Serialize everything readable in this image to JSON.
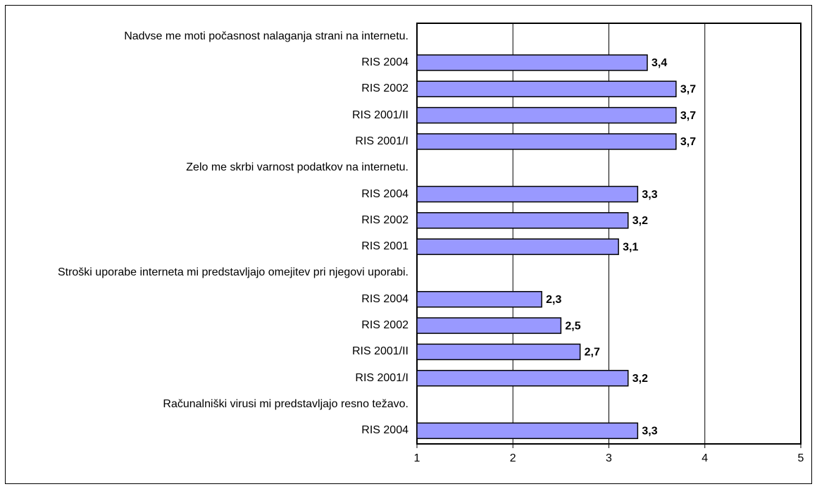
{
  "chart_data": {
    "type": "barh",
    "categories": [
      "Nadvse me moti počasnost nalaganja strani na internetu.",
      "RIS 2004",
      "RIS 2002",
      "RIS 2001/II",
      "RIS 2001/I",
      "Zelo me skrbi varnost podatkov na internetu.",
      "RIS 2004",
      "RIS 2002",
      "RIS 2001",
      "Stroški uporabe interneta mi predstavljajo omejitev pri njegovi uporabi.",
      "RIS 2004",
      "RIS 2002",
      "RIS 2001/II",
      "RIS 2001/I",
      "Računalniški virusi mi predstavljajo resno težavo.",
      "RIS 2004"
    ],
    "values": [
      null,
      3.4,
      3.7,
      3.7,
      3.7,
      null,
      3.3,
      3.2,
      3.1,
      null,
      2.3,
      2.5,
      2.7,
      3.2,
      null,
      3.3
    ],
    "value_labels": [
      null,
      "3,4",
      "3,7",
      "3,7",
      "3,7",
      null,
      "3,3",
      "3,2",
      "3,1",
      null,
      "2,3",
      "2,5",
      "2,7",
      "3,2",
      null,
      "3,3"
    ],
    "color": "#9999ff",
    "xlim": [
      1,
      5
    ],
    "xticks": [
      1,
      2,
      3,
      4,
      5
    ],
    "grid": true
  }
}
